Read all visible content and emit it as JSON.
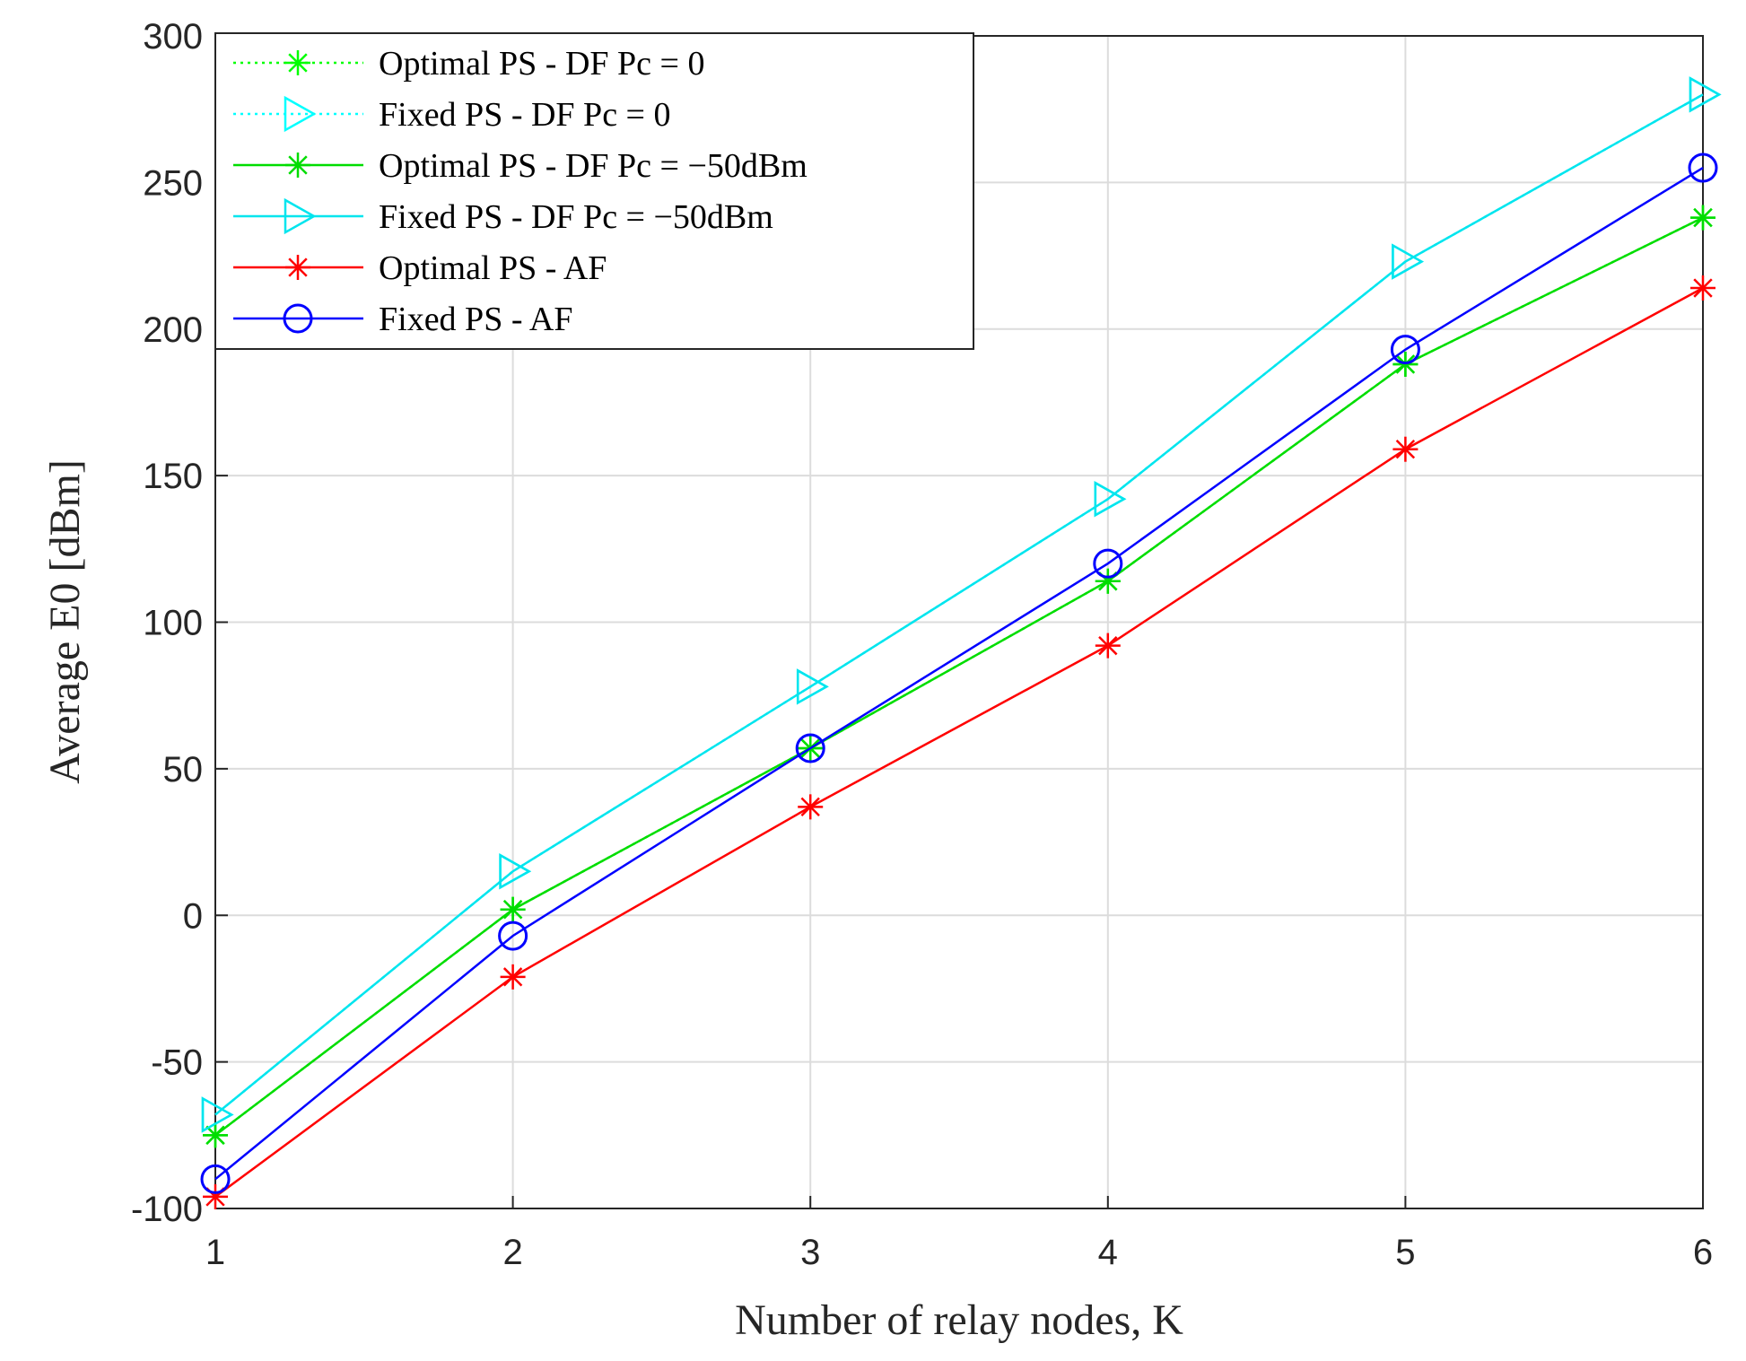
{
  "chart_data": {
    "type": "line",
    "xlabel": "Number of relay nodes, K",
    "ylabel": "Average E0 [dBm]",
    "xlim": [
      1,
      6
    ],
    "ylim": [
      -100,
      300
    ],
    "xticks": [
      1,
      2,
      3,
      4,
      5,
      6
    ],
    "yticks": [
      -100,
      -50,
      0,
      50,
      100,
      150,
      200,
      250,
      300
    ],
    "grid": true,
    "legend_position": "top-left",
    "x": [
      1,
      2,
      3,
      4,
      5,
      6
    ],
    "series": [
      {
        "name": "Optimal PS - DF Pc = 0",
        "color": "#00ff00",
        "line": "dotted",
        "marker": "star",
        "values": [
          -75,
          2,
          57,
          114,
          188,
          238
        ]
      },
      {
        "name": "Fixed PS - DF Pc = 0",
        "color": "#00ffff",
        "line": "dotted",
        "marker": "triangle-right",
        "values": [
          -68,
          15,
          78,
          142,
          223,
          280
        ]
      },
      {
        "name": "Optimal PS - DF Pc = −50dBm",
        "color": "#00dd00",
        "line": "solid",
        "marker": "star",
        "values": [
          -75,
          2,
          57,
          114,
          188,
          238
        ]
      },
      {
        "name": "Fixed PS - DF Pc = −50dBm",
        "color": "#00e5ee",
        "line": "solid",
        "marker": "triangle-right",
        "values": [
          -68,
          15,
          78,
          142,
          223,
          280
        ]
      },
      {
        "name": "Optimal PS - AF",
        "color": "#ff0000",
        "line": "solid",
        "marker": "star",
        "values": [
          -96,
          -21,
          37,
          92,
          159,
          214
        ]
      },
      {
        "name": "Fixed PS - AF",
        "color": "#0000ff",
        "line": "solid",
        "marker": "circle",
        "values": [
          -90,
          -7,
          57,
          120,
          193,
          255
        ]
      }
    ]
  }
}
